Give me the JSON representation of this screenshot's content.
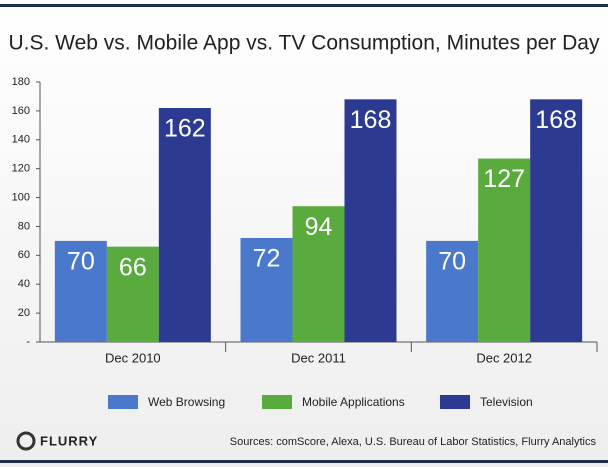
{
  "chart_data": {
    "type": "bar",
    "title": "U.S. Web vs. Mobile App vs. TV Consumption, Minutes per Day",
    "categories": [
      "Dec 2010",
      "Dec 2011",
      "Dec 2012"
    ],
    "series": [
      {
        "name": "Web Browsing",
        "color": "#4a78cb",
        "values": [
          70,
          72,
          70
        ]
      },
      {
        "name": "Mobile Applications",
        "color": "#5aab3d",
        "values": [
          66,
          94,
          127
        ]
      },
      {
        "name": "Television",
        "color": "#2c3b91",
        "values": [
          162,
          168,
          168
        ]
      }
    ],
    "ylim": [
      0,
      180
    ],
    "yticks": [
      {
        "value": 0,
        "label": "-"
      },
      20,
      40,
      60,
      80,
      100,
      120,
      140,
      160,
      180
    ],
    "grid": false
  },
  "footer": {
    "logo": "FLURRY",
    "source": "Sources: comScore, Alexa, U.S. Bureau of Labor Statistics, Flurry Analytics"
  }
}
